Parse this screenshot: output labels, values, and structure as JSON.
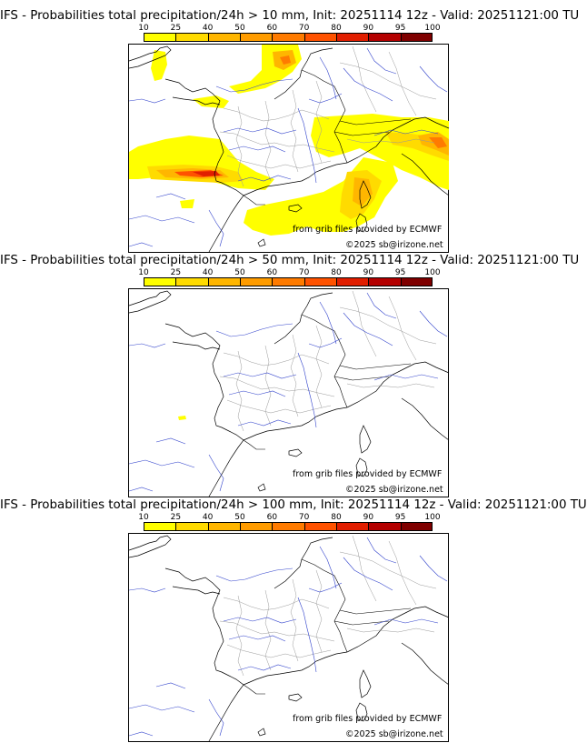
{
  "colorbar": {
    "ticks": [
      "10",
      "25",
      "40",
      "50",
      "60",
      "70",
      "80",
      "90",
      "95",
      "100"
    ],
    "colors": [
      "#ffff00",
      "#ffdb00",
      "#ffb600",
      "#ff9c00",
      "#ff7b00",
      "#ff5200",
      "#e11e00",
      "#b40000",
      "#7f0000"
    ]
  },
  "panels": [
    {
      "title": "IFS - Probabilities total precipitation/24h > 10 mm, Init: 20251114 12z - Valid: 20251121:00 TU",
      "credit_source": "from grib files provided by ECMWF",
      "credit_copy": "©2025 sb@irizone.net"
    },
    {
      "title": "IFS - Probabilities total precipitation/24h > 50 mm, Init: 20251114 12z - Valid: 20251121:00 TU",
      "credit_source": "from grib files provided by ECMWF",
      "credit_copy": "©2025 sb@irizone.net"
    },
    {
      "title": "IFS - Probabilities total precipitation/24h > 100 mm, Init: 20251114 12z - Valid: 20251121:00 TU",
      "credit_source": "from grib files provided by ECMWF",
      "credit_copy": "©2025 sb@irizone.net"
    }
  ]
}
